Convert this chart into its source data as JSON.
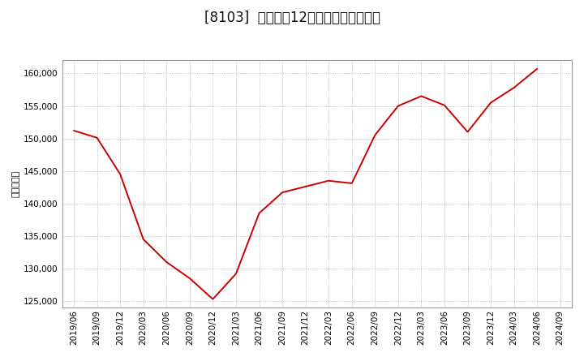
{
  "title": "[8103]  売上高の12か月移動合計の推移",
  "ylabel": "（百万円）",
  "line_color": "#cc0000",
  "background_color": "#ffffff",
  "plot_bg_color": "#ffffff",
  "grid_color": "#aaaaaa",
  "dates": [
    "2019/06",
    "2019/09",
    "2019/12",
    "2020/03",
    "2020/06",
    "2020/09",
    "2020/12",
    "2021/03",
    "2021/06",
    "2021/09",
    "2021/12",
    "2022/03",
    "2022/06",
    "2022/09",
    "2022/12",
    "2023/03",
    "2023/06",
    "2023/09",
    "2023/12",
    "2024/03",
    "2024/06"
  ],
  "values": [
    151200,
    150100,
    144500,
    134500,
    131000,
    128500,
    125300,
    129200,
    138500,
    141700,
    142600,
    143500,
    143100,
    150500,
    155000,
    156500,
    155100,
    151000,
    155500,
    157800,
    160700
  ],
  "yticks": [
    125000,
    130000,
    135000,
    140000,
    145000,
    150000,
    155000,
    160000
  ],
  "ylim": [
    124000,
    162000
  ],
  "xtick_labels": [
    "2019/06",
    "2019/09",
    "2019/12",
    "2020/03",
    "2020/06",
    "2020/09",
    "2020/12",
    "2021/03",
    "2021/06",
    "2021/09",
    "2021/12",
    "2022/03",
    "2022/06",
    "2022/09",
    "2022/12",
    "2023/03",
    "2023/06",
    "2023/09",
    "2023/12",
    "2024/03",
    "2024/06",
    "2024/09"
  ],
  "title_fontsize": 12,
  "axis_fontsize": 8,
  "tick_fontsize": 7.5
}
